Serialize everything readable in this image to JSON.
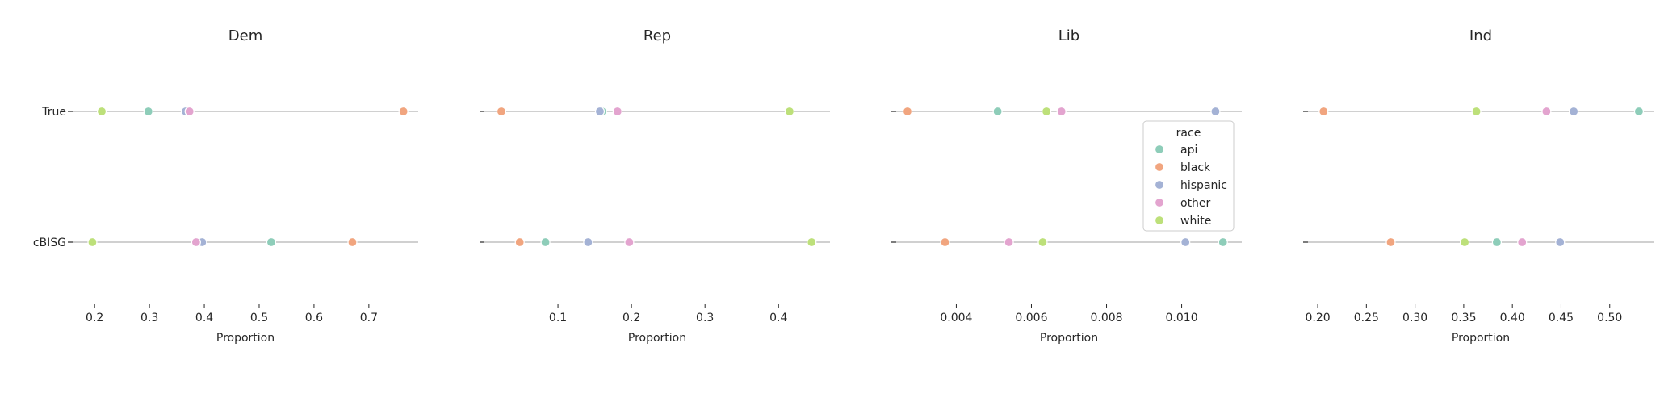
{
  "chart_data": {
    "type": "scatter",
    "categories": [
      "True",
      "cBISG"
    ],
    "xlabel": "Proportion",
    "legend": {
      "title": "race",
      "placement": "center-right of third panel",
      "entries": [
        "api",
        "black",
        "hispanic",
        "other",
        "white"
      ]
    },
    "colors": {
      "api": "#8ecdb9",
      "black": "#f1a57f",
      "hispanic": "#a4b2d5",
      "other": "#e3a4cf",
      "white": "#bde07a",
      "rule": "#b3b3b3",
      "axis": "#262626"
    },
    "grid": false,
    "panels": [
      {
        "title": "Dem",
        "xlim": [
          0.16,
          0.79
        ],
        "xticks": [
          0.2,
          0.3,
          0.4,
          0.5,
          0.6,
          0.7
        ],
        "xtick_labels": [
          "0.2",
          "0.3",
          "0.4",
          "0.5",
          "0.6",
          "0.7"
        ],
        "series": [
          {
            "name": "api",
            "values": [
              0.298,
              0.522
            ]
          },
          {
            "name": "black",
            "values": [
              0.763,
              0.67
            ]
          },
          {
            "name": "hispanic",
            "values": [
              0.366,
              0.396
            ]
          },
          {
            "name": "other",
            "values": [
              0.373,
              0.385
            ]
          },
          {
            "name": "white",
            "values": [
              0.213,
              0.196
            ]
          }
        ]
      },
      {
        "title": "Rep",
        "xlim": [
          0.0,
          0.47
        ],
        "xticks": [
          0.1,
          0.2,
          0.3,
          0.4
        ],
        "xtick_labels": [
          "0.1",
          "0.2",
          "0.3",
          "0.4"
        ],
        "series": [
          {
            "name": "api",
            "values": [
              0.16,
              0.083
            ]
          },
          {
            "name": "black",
            "values": [
              0.023,
              0.048
            ]
          },
          {
            "name": "hispanic",
            "values": [
              0.157,
              0.141
            ]
          },
          {
            "name": "other",
            "values": [
              0.181,
              0.197
            ]
          },
          {
            "name": "white",
            "values": [
              0.415,
              0.445
            ]
          }
        ]
      },
      {
        "title": "Lib",
        "xlim": [
          0.0024,
          0.0116
        ],
        "xticks": [
          0.004,
          0.006,
          0.008,
          0.01
        ],
        "xtick_labels": [
          "0.004",
          "0.006",
          "0.008",
          "0.010"
        ],
        "series": [
          {
            "name": "api",
            "values": [
              0.0051,
              0.0111
            ]
          },
          {
            "name": "black",
            "values": [
              0.0027,
              0.0037
            ]
          },
          {
            "name": "hispanic",
            "values": [
              0.0109,
              0.0101
            ]
          },
          {
            "name": "other",
            "values": [
              0.0068,
              0.0054
            ]
          },
          {
            "name": "white",
            "values": [
              0.0064,
              0.0063
            ]
          }
        ]
      },
      {
        "title": "Ind",
        "xlim": [
          0.19,
          0.545
        ],
        "xticks": [
          0.2,
          0.25,
          0.3,
          0.35,
          0.4,
          0.45,
          0.5
        ],
        "xtick_labels": [
          "0.20",
          "0.25",
          "0.30",
          "0.35",
          "0.40",
          "0.45",
          "0.50"
        ],
        "series": [
          {
            "name": "api",
            "values": [
              0.53,
              0.384
            ]
          },
          {
            "name": "black",
            "values": [
              0.206,
              0.275
            ]
          },
          {
            "name": "hispanic",
            "values": [
              0.463,
              0.449
            ]
          },
          {
            "name": "other",
            "values": [
              0.435,
              0.41
            ]
          },
          {
            "name": "white",
            "values": [
              0.363,
              0.351
            ]
          }
        ]
      }
    ]
  }
}
